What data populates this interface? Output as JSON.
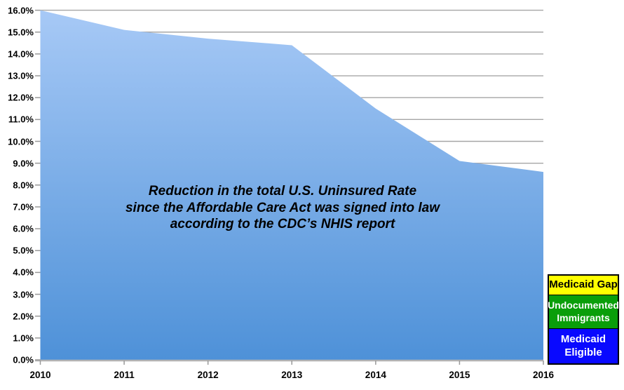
{
  "chart_data": {
    "type": "area",
    "x": [
      2010,
      2011,
      2012,
      2013,
      2014,
      2015,
      2016
    ],
    "series": [
      {
        "name": "Total U.S. uninsured rate (%)",
        "values": [
          16.0,
          15.1,
          14.7,
          14.4,
          11.5,
          9.1,
          8.6
        ]
      }
    ],
    "title": "Reduction in the total U.S. Uninsured Rate since the Affordable Care Act was signed into law according to the CDC’s NHIS report",
    "annotation_lines": [
      "Reduction in the total U.S. Uninsured Rate",
      "since the Affordable Care Act was signed into law",
      "according to the CDC’s NHIS report"
    ],
    "xlabel": "",
    "ylabel": "",
    "x_tick_labels": [
      "2010",
      "2011",
      "2012",
      "2013",
      "2014",
      "2015",
      "2016"
    ],
    "y_tick_labels": [
      "0.0%",
      "1.0%",
      "2.0%",
      "3.0%",
      "4.0%",
      "5.0%",
      "6.0%",
      "7.0%",
      "8.0%",
      "9.0%",
      "10.0%",
      "11.0%",
      "12.0%",
      "13.0%",
      "14.0%",
      "15.0%",
      "16.0%"
    ],
    "ylim": [
      0,
      16
    ],
    "ytick_step": 1,
    "grid": true,
    "colors": {
      "area_gradient_top": "#a7c9f6",
      "area_gradient_bottom": "#4e91d8",
      "gridline": "#a6a6a6",
      "axis_line": "#b3b3b3",
      "tick": "#999999",
      "label_text": "#000000"
    },
    "legend_position": "bottom-right",
    "legend": [
      {
        "label": "Medicaid Gap",
        "bg": "#ffff00",
        "text_color": "#000000"
      },
      {
        "label": "Undocumented Immigrants",
        "bg": "#0a9e0a",
        "text_color": "#ffffff"
      },
      {
        "label": "Medicaid Eligible",
        "bg": "#0909ff",
        "text_color": "#ffffff"
      }
    ]
  }
}
